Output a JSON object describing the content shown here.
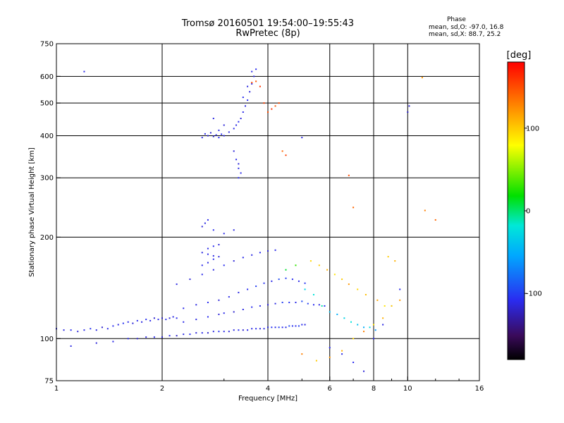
{
  "chart_data": {
    "type": "scatter",
    "title": "Tromsø 20160501 19:54:00–19:55:43",
    "subtitle": "RwPretec (8p)",
    "xlabel": "Frequency [MHz]",
    "ylabel": "Stationary phase Virtual Height [km]",
    "xscale": "log",
    "yscale": "log",
    "xlim": [
      1,
      16
    ],
    "ylim": [
      75,
      750
    ],
    "x_ticks": [
      "1",
      "2",
      "4",
      "6",
      "8",
      "10",
      "16"
    ],
    "x_tick_values": [
      1,
      2,
      4,
      6,
      8,
      10,
      16
    ],
    "y_ticks": [
      "75",
      "100",
      "200",
      "300",
      "400",
      "500",
      "600",
      "750"
    ],
    "y_tick_values": [
      75,
      100,
      200,
      300,
      400,
      500,
      600,
      750
    ],
    "grid": true,
    "colorbar": {
      "label": "[deg]",
      "range": [
        -180,
        180
      ],
      "ticks": [
        "100",
        "0",
        "-100"
      ],
      "tick_values": [
        100,
        0,
        -100
      ]
    },
    "phase_stats": {
      "heading": "Phase",
      "line_o": "mean, sd,O:  -97.0, 16.8",
      "line_x": "mean, sd,X:  88.7, 25.2"
    },
    "series": [
      {
        "points": [
          [
            1.0,
            107,
            -110
          ],
          [
            1.05,
            106,
            -112
          ],
          [
            1.1,
            106,
            -108
          ],
          [
            1.15,
            105,
            -115
          ],
          [
            1.2,
            106,
            -110
          ],
          [
            1.25,
            107,
            -105
          ],
          [
            1.3,
            106,
            -112
          ],
          [
            1.35,
            108,
            -118
          ],
          [
            1.4,
            107,
            -110
          ],
          [
            1.45,
            109,
            -108
          ],
          [
            1.5,
            110,
            -112
          ],
          [
            1.55,
            111,
            -105
          ],
          [
            1.6,
            112,
            -110
          ],
          [
            1.65,
            111,
            -115
          ],
          [
            1.7,
            113,
            -108
          ],
          [
            1.75,
            112,
            -112
          ],
          [
            1.8,
            114,
            -106
          ],
          [
            1.85,
            113,
            -110
          ],
          [
            1.9,
            115,
            -118
          ],
          [
            1.95,
            114,
            -110
          ],
          [
            2.0,
            115,
            -120
          ],
          [
            2.05,
            114,
            -108
          ],
          [
            2.1,
            115,
            -115
          ],
          [
            2.15,
            116,
            -112
          ],
          [
            2.2,
            115,
            -110
          ],
          [
            1.6,
            100,
            -110
          ],
          [
            1.7,
            100,
            -118
          ],
          [
            1.8,
            101,
            -112
          ],
          [
            1.9,
            101,
            -108
          ],
          [
            2.0,
            101,
            -115
          ],
          [
            2.1,
            102,
            -110
          ],
          [
            2.2,
            102,
            -120
          ],
          [
            2.3,
            103,
            -112
          ],
          [
            2.4,
            103,
            -108
          ],
          [
            2.5,
            104,
            -115
          ],
          [
            2.6,
            104,
            -110
          ],
          [
            2.7,
            104,
            -118
          ],
          [
            2.8,
            105,
            -112
          ],
          [
            2.9,
            105,
            -105
          ],
          [
            3.0,
            105,
            -110
          ],
          [
            3.1,
            105,
            -115
          ],
          [
            3.2,
            106,
            -112
          ],
          [
            3.3,
            106,
            -108
          ],
          [
            3.4,
            106,
            -118
          ],
          [
            3.5,
            106,
            -110
          ],
          [
            3.6,
            107,
            -112
          ],
          [
            3.7,
            107,
            -108
          ],
          [
            3.8,
            107,
            -115
          ],
          [
            3.9,
            107,
            -110
          ],
          [
            4.0,
            108,
            -112
          ],
          [
            4.1,
            108,
            -105
          ],
          [
            4.2,
            108,
            -110
          ],
          [
            4.3,
            108,
            -100
          ],
          [
            4.4,
            108,
            -108
          ],
          [
            4.5,
            108,
            -112
          ],
          [
            4.6,
            109,
            -95
          ],
          [
            4.7,
            109,
            -105
          ],
          [
            4.8,
            109,
            -110
          ],
          [
            4.9,
            109,
            -100
          ],
          [
            5.0,
            110,
            -108
          ],
          [
            5.1,
            110,
            -112
          ],
          [
            2.3,
            112,
            -110
          ],
          [
            2.5,
            114,
            -112
          ],
          [
            2.7,
            116,
            -108
          ],
          [
            2.9,
            118,
            -115
          ],
          [
            3.0,
            119,
            -110
          ],
          [
            3.2,
            120,
            -118
          ],
          [
            3.4,
            122,
            -112
          ],
          [
            3.6,
            124,
            -108
          ],
          [
            3.8,
            125,
            -110
          ],
          [
            4.0,
            126,
            -115
          ],
          [
            4.2,
            127,
            -112
          ],
          [
            4.4,
            128,
            -100
          ],
          [
            4.6,
            128,
            -105
          ],
          [
            4.8,
            128,
            -110
          ],
          [
            5.0,
            129,
            -95
          ],
          [
            5.2,
            127,
            -100
          ],
          [
            5.4,
            126,
            -108
          ],
          [
            5.6,
            126,
            -112
          ],
          [
            5.8,
            125,
            -105
          ],
          [
            2.3,
            123,
            -110
          ],
          [
            2.5,
            126,
            -112
          ],
          [
            2.7,
            128,
            -108
          ],
          [
            2.9,
            130,
            -115
          ],
          [
            3.1,
            133,
            -110
          ],
          [
            3.3,
            137,
            -112
          ],
          [
            3.5,
            140,
            -108
          ],
          [
            3.7,
            143,
            -100
          ],
          [
            3.9,
            146,
            -105
          ],
          [
            4.1,
            148,
            -110
          ],
          [
            4.3,
            150,
            -95
          ],
          [
            4.5,
            151,
            -100
          ],
          [
            4.7,
            150,
            -108
          ],
          [
            4.9,
            148,
            -110
          ],
          [
            5.1,
            146,
            -105
          ],
          [
            2.2,
            145,
            -112
          ],
          [
            2.4,
            150,
            -115
          ],
          [
            2.6,
            155,
            -110
          ],
          [
            2.8,
            160,
            -112
          ],
          [
            3.0,
            165,
            -108
          ],
          [
            3.2,
            170,
            -115
          ],
          [
            3.4,
            174,
            -110
          ],
          [
            3.6,
            177,
            -112
          ],
          [
            3.8,
            180,
            -108
          ],
          [
            4.0,
            182,
            -115
          ],
          [
            4.2,
            183,
            -110
          ],
          [
            2.6,
            165,
            -110
          ],
          [
            2.7,
            168,
            -112
          ],
          [
            2.8,
            172,
            -108
          ],
          [
            2.9,
            175,
            -115
          ],
          [
            2.6,
            180,
            -112
          ],
          [
            2.7,
            185,
            -110
          ],
          [
            2.8,
            188,
            -108
          ],
          [
            2.9,
            190,
            -115
          ],
          [
            2.7,
            178,
            -110
          ],
          [
            2.8,
            176,
            -112
          ],
          [
            2.6,
            215,
            -115
          ],
          [
            2.65,
            220,
            -112
          ],
          [
            2.7,
            225,
            -110
          ],
          [
            2.8,
            210,
            -108
          ],
          [
            3.0,
            205,
            -110
          ],
          [
            3.2,
            210,
            -112
          ],
          [
            2.6,
            395,
            -110
          ],
          [
            2.7,
            400,
            -115
          ],
          [
            2.8,
            398,
            -112
          ],
          [
            2.9,
            395,
            -108
          ],
          [
            3.0,
            400,
            -110
          ],
          [
            2.65,
            405,
            -112
          ],
          [
            2.75,
            408,
            -115
          ],
          [
            2.85,
            402,
            -110
          ],
          [
            2.95,
            404,
            -108
          ],
          [
            3.1,
            410,
            -112
          ],
          [
            2.9,
            415,
            -110
          ],
          [
            3.0,
            430,
            -115
          ],
          [
            2.8,
            450,
            -112
          ],
          [
            3.2,
            420,
            -110
          ],
          [
            3.25,
            430,
            -112
          ],
          [
            3.3,
            440,
            -108
          ],
          [
            3.35,
            450,
            -115
          ],
          [
            3.4,
            470,
            -110
          ],
          [
            3.45,
            490,
            -112
          ],
          [
            3.5,
            510,
            -108
          ],
          [
            3.55,
            540,
            -115
          ],
          [
            3.6,
            570,
            -110
          ],
          [
            3.65,
            600,
            -112
          ],
          [
            3.7,
            630,
            -108
          ],
          [
            3.6,
            620,
            -110
          ],
          [
            3.5,
            560,
            -112
          ],
          [
            3.4,
            520,
            -108
          ],
          [
            3.2,
            360,
            -115
          ],
          [
            3.25,
            340,
            -110
          ],
          [
            3.3,
            320,
            -112
          ],
          [
            3.3,
            300,
            -108
          ],
          [
            3.35,
            310,
            -110
          ],
          [
            3.3,
            330,
            -115
          ],
          [
            1.2,
            620,
            -110
          ],
          [
            5.0,
            395,
            -112
          ],
          [
            10.0,
            470,
            -120
          ],
          [
            10.1,
            490,
            -115
          ],
          [
            6.0,
            94,
            -110
          ],
          [
            6.5,
            90,
            -112
          ],
          [
            7.0,
            85,
            -108
          ],
          [
            7.5,
            80,
            -115
          ],
          [
            8.0,
            100,
            -110
          ],
          [
            8.5,
            110,
            -112
          ],
          [
            9.0,
            125,
            -108
          ],
          [
            9.5,
            140,
            -110
          ],
          [
            1.1,
            95,
            -112
          ],
          [
            1.3,
            97,
            -115
          ],
          [
            1.45,
            98,
            -110
          ]
        ]
      },
      {
        "points": [
          [
            3.6,
            575,
            150
          ],
          [
            3.7,
            580,
            145
          ],
          [
            3.8,
            560,
            160
          ],
          [
            3.9,
            500,
            155
          ],
          [
            4.0,
            470,
            150
          ],
          [
            4.1,
            480,
            160
          ],
          [
            4.2,
            490,
            145
          ],
          [
            4.3,
            500,
            150
          ],
          [
            4.4,
            360,
            140
          ],
          [
            4.5,
            350,
            155
          ],
          [
            5.0,
            90,
            130
          ],
          [
            5.5,
            86,
            100
          ],
          [
            6.0,
            88,
            120
          ],
          [
            6.5,
            92,
            110
          ],
          [
            7.0,
            100,
            95
          ],
          [
            7.5,
            105,
            130
          ],
          [
            8.0,
            110,
            90
          ],
          [
            8.5,
            115,
            110
          ],
          [
            9.0,
            125,
            100
          ],
          [
            9.5,
            130,
            120
          ],
          [
            8.8,
            175,
            100
          ],
          [
            9.2,
            170,
            110
          ],
          [
            5.3,
            170,
            95
          ],
          [
            5.6,
            165,
            100
          ],
          [
            5.9,
            160,
            110
          ],
          [
            6.2,
            155,
            90
          ],
          [
            6.5,
            150,
            100
          ],
          [
            6.8,
            145,
            120
          ],
          [
            7.2,
            140,
            95
          ],
          [
            7.6,
            135,
            105
          ],
          [
            8.2,
            130,
            115
          ],
          [
            8.6,
            125,
            90
          ],
          [
            6.8,
            305,
            150
          ],
          [
            7.0,
            245,
            140
          ],
          [
            11.0,
            595,
            120
          ],
          [
            11.2,
            240,
            130
          ],
          [
            12.0,
            225,
            140
          ],
          [
            4.5,
            160,
            10
          ],
          [
            4.8,
            165,
            30
          ],
          [
            5.1,
            140,
            -30
          ],
          [
            5.4,
            135,
            -20
          ],
          [
            5.7,
            125,
            -10
          ],
          [
            6.0,
            120,
            -40
          ],
          [
            6.3,
            118,
            -50
          ],
          [
            6.6,
            115,
            -30
          ],
          [
            6.9,
            112,
            -20
          ],
          [
            7.2,
            110,
            -40
          ],
          [
            7.5,
            108,
            -50
          ],
          [
            7.8,
            108,
            -25
          ],
          [
            8.1,
            106,
            -60
          ]
        ]
      }
    ]
  }
}
